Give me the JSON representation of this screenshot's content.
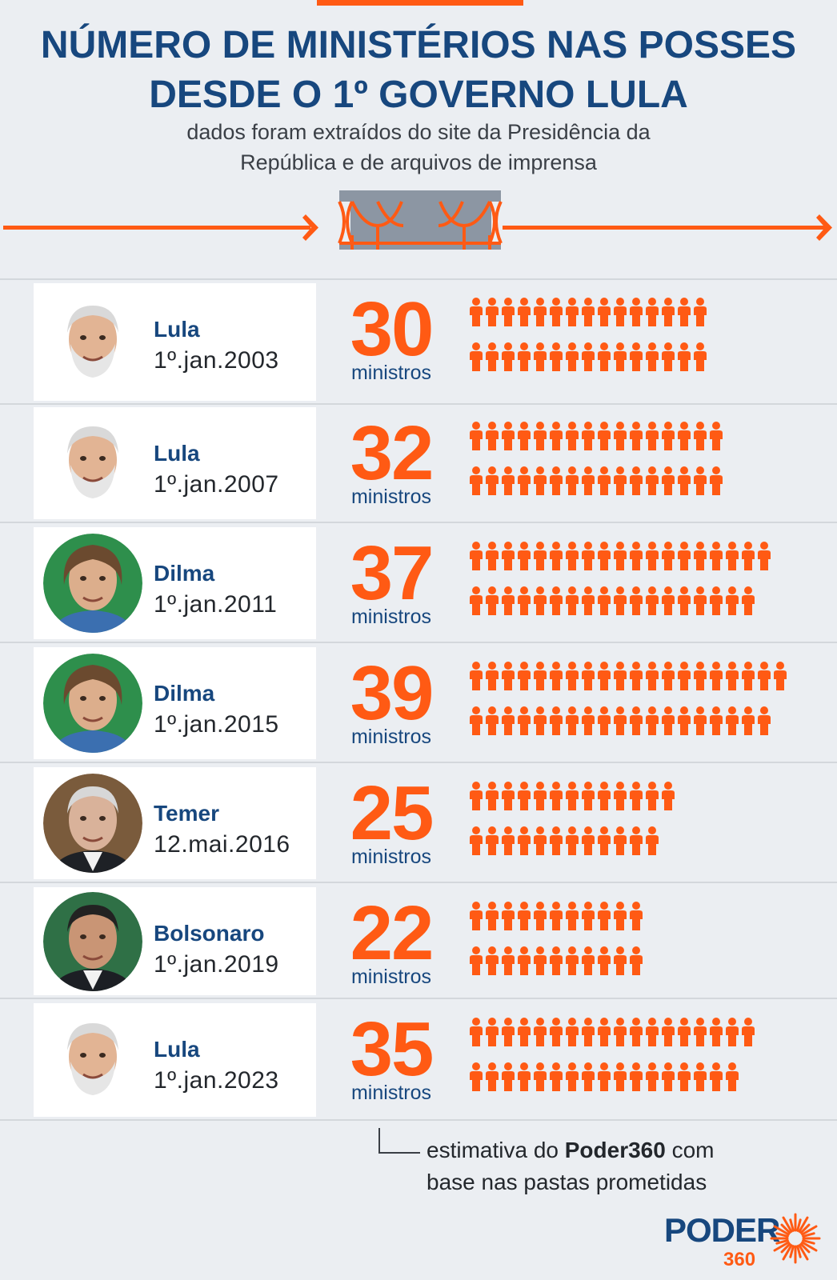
{
  "header": {
    "title_line1": "NÚMERO DE MINISTÉRIOS NAS POSSES",
    "title_line2": "DESDE O 1º GOVERNO LULA",
    "subtitle_line1": "dados foram extraídos do site da Presidência da",
    "subtitle_line2": "República e de arquivos de imprensa"
  },
  "colors": {
    "accent": "#ff5a14",
    "navy": "#17477e",
    "background": "#ebeef2"
  },
  "unit_label": "ministros",
  "chart_data": {
    "type": "pictograph",
    "title": "NÚMERO DE MINISTÉRIOS NAS POSSES DESDE O 1º GOVERNO LULA",
    "unit": "ministros",
    "rows": [
      {
        "name": "Lula",
        "date": "1º.jan.2003",
        "value": 30,
        "photo": "lula-photo"
      },
      {
        "name": "Lula",
        "date": "1º.jan.2007",
        "value": 32,
        "photo": "lula-photo"
      },
      {
        "name": "Dilma",
        "date": "1º.jan.2011",
        "value": 37,
        "photo": "dilma-photo"
      },
      {
        "name": "Dilma",
        "date": "1º.jan.2015",
        "value": 39,
        "photo": "dilma-photo"
      },
      {
        "name": "Temer",
        "date": "12.mai.2016",
        "value": 25,
        "photo": "temer-photo"
      },
      {
        "name": "Bolsonaro",
        "date": "1º.jan.2019",
        "value": 22,
        "photo": "bolsonaro-photo"
      },
      {
        "name": "Lula",
        "date": "1º.jan.2023",
        "value": 35,
        "photo": "lula-photo"
      }
    ]
  },
  "footnote": {
    "part1": "estimativa do ",
    "brand": "Poder360",
    "part2": " com",
    "line2": "base nas pastas prometidas"
  },
  "logo": {
    "word": "PODER",
    "number": "360"
  }
}
